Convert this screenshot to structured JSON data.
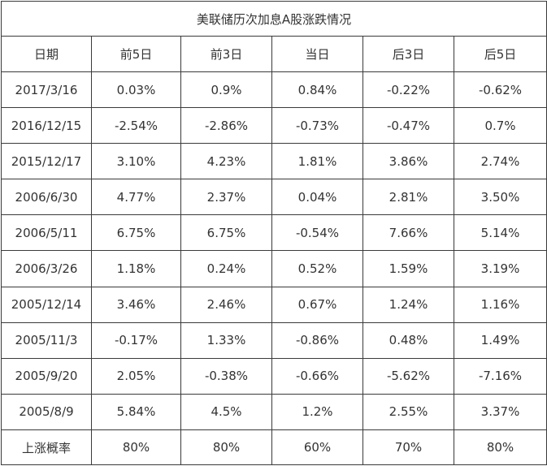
{
  "table": {
    "title": "美联储历次加息A股涨跌情况",
    "headers": [
      "日期",
      "前5日",
      "前3日",
      "当日",
      "后3日",
      "后5日"
    ],
    "rows": [
      [
        "2017/3/16",
        "0.03%",
        "0.9%",
        "0.84%",
        "-0.22%",
        "-0.62%"
      ],
      [
        "2016/12/15",
        "-2.54%",
        "-2.86%",
        "-0.73%",
        "-0.47%",
        "0.7%"
      ],
      [
        "2015/12/17",
        "3.10%",
        "4.23%",
        "1.81%",
        "3.86%",
        "2.74%"
      ],
      [
        "2006/6/30",
        "4.77%",
        "2.37%",
        "0.04%",
        "2.81%",
        "3.50%"
      ],
      [
        "2006/5/11",
        "6.75%",
        "6.75%",
        "-0.54%",
        "7.66%",
        "5.14%"
      ],
      [
        "2006/3/26",
        "1.18%",
        "0.24%",
        "0.52%",
        "1.59%",
        "3.19%"
      ],
      [
        "2005/12/14",
        "3.46%",
        "2.46%",
        "0.67%",
        "1.24%",
        "1.16%"
      ],
      [
        "2005/11/3",
        "-0.17%",
        "1.33%",
        "-0.86%",
        "0.48%",
        "1.49%"
      ],
      [
        "2005/9/20",
        "2.05%",
        "-0.38%",
        "-0.66%",
        "-5.62%",
        "-7.16%"
      ],
      [
        "2005/8/9",
        "5.84%",
        "4.5%",
        "1.2%",
        "2.55%",
        "3.37%"
      ]
    ],
    "summary": [
      "上涨概率",
      "80%",
      "80%",
      "60%",
      "70%",
      "80%"
    ]
  }
}
